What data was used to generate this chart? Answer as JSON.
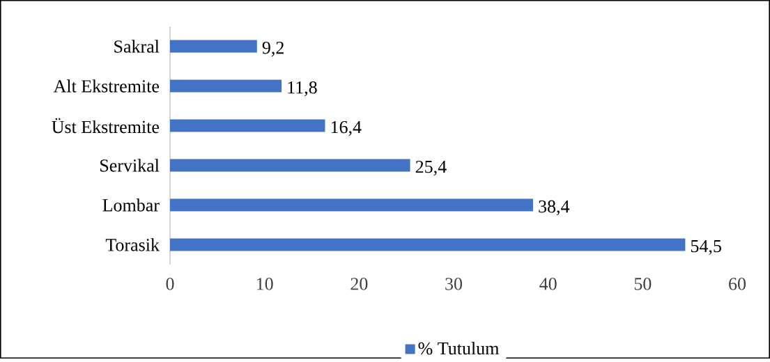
{
  "chart_data": {
    "type": "bar",
    "orientation": "horizontal",
    "categories": [
      "Sakral",
      "Alt Ekstremite",
      "Üst Ekstremite",
      "Servikal",
      "Lombar",
      "Torasik"
    ],
    "series": [
      {
        "name": "% Tutulum",
        "color": "#4472c4",
        "values": [
          9.2,
          11.8,
          16.4,
          25.4,
          38.4,
          54.5
        ],
        "value_labels": [
          "9,2",
          "11,8",
          "16,4",
          "25,4",
          "38,4",
          "54,5"
        ]
      }
    ],
    "xlim": [
      0,
      60
    ],
    "xticks": [
      0,
      10,
      20,
      30,
      40,
      50,
      60
    ],
    "grid": false,
    "legend": "bottom"
  }
}
